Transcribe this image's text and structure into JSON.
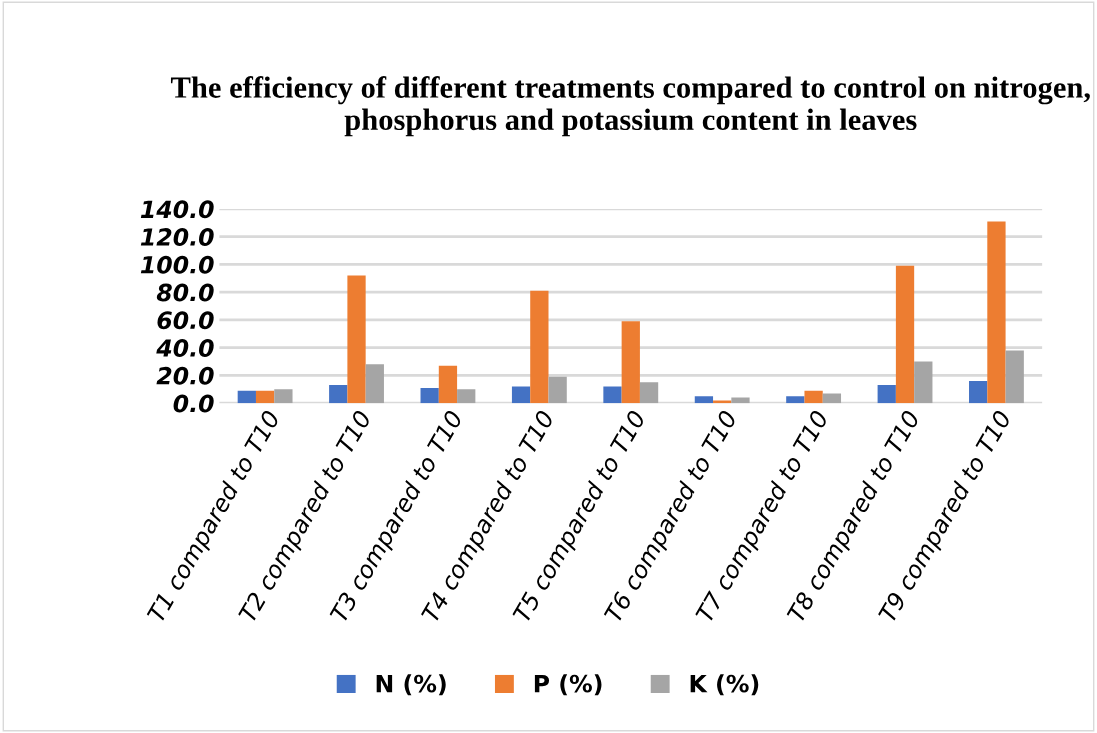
{
  "chart_data": {
    "type": "bar",
    "title": "The efficiency of different treatments compared to control on nitrogen, phosphorus and potassium content in leaves",
    "categories": [
      "T1 compared to T10",
      "T2 compared to T10",
      "T3 compared to T10",
      "T4 compared to T10",
      "T5 compared to T10",
      "T6 compared to T10",
      "T7 compared to T10",
      "T8 compared to T10",
      "T9 compared to T10"
    ],
    "series": [
      {
        "name": "N (%)",
        "color": "#4472c4",
        "values": [
          9,
          13,
          11,
          12,
          12,
          5,
          5,
          13,
          16
        ]
      },
      {
        "name": "P (%)",
        "color": "#ed7d31",
        "values": [
          9,
          92,
          27,
          81,
          59,
          2,
          9,
          99,
          131
        ]
      },
      {
        "name": "K (%)",
        "color": "#a5a5a5",
        "values": [
          10,
          28,
          10,
          19,
          15,
          4,
          7,
          30,
          38
        ]
      }
    ],
    "ylim": [
      0,
      140
    ],
    "yticks": [
      {
        "value": 0,
        "label": "0.0"
      },
      {
        "value": 20,
        "label": "20.0"
      },
      {
        "value": 40,
        "label": "40.0"
      },
      {
        "value": 60,
        "label": "60.0"
      },
      {
        "value": 80,
        "label": "80.0"
      },
      {
        "value": 100,
        "label": "100.0"
      },
      {
        "value": 120,
        "label": "120.0"
      },
      {
        "value": 140,
        "label": "140.0"
      }
    ],
    "grid": "y",
    "legend": "bottom"
  }
}
